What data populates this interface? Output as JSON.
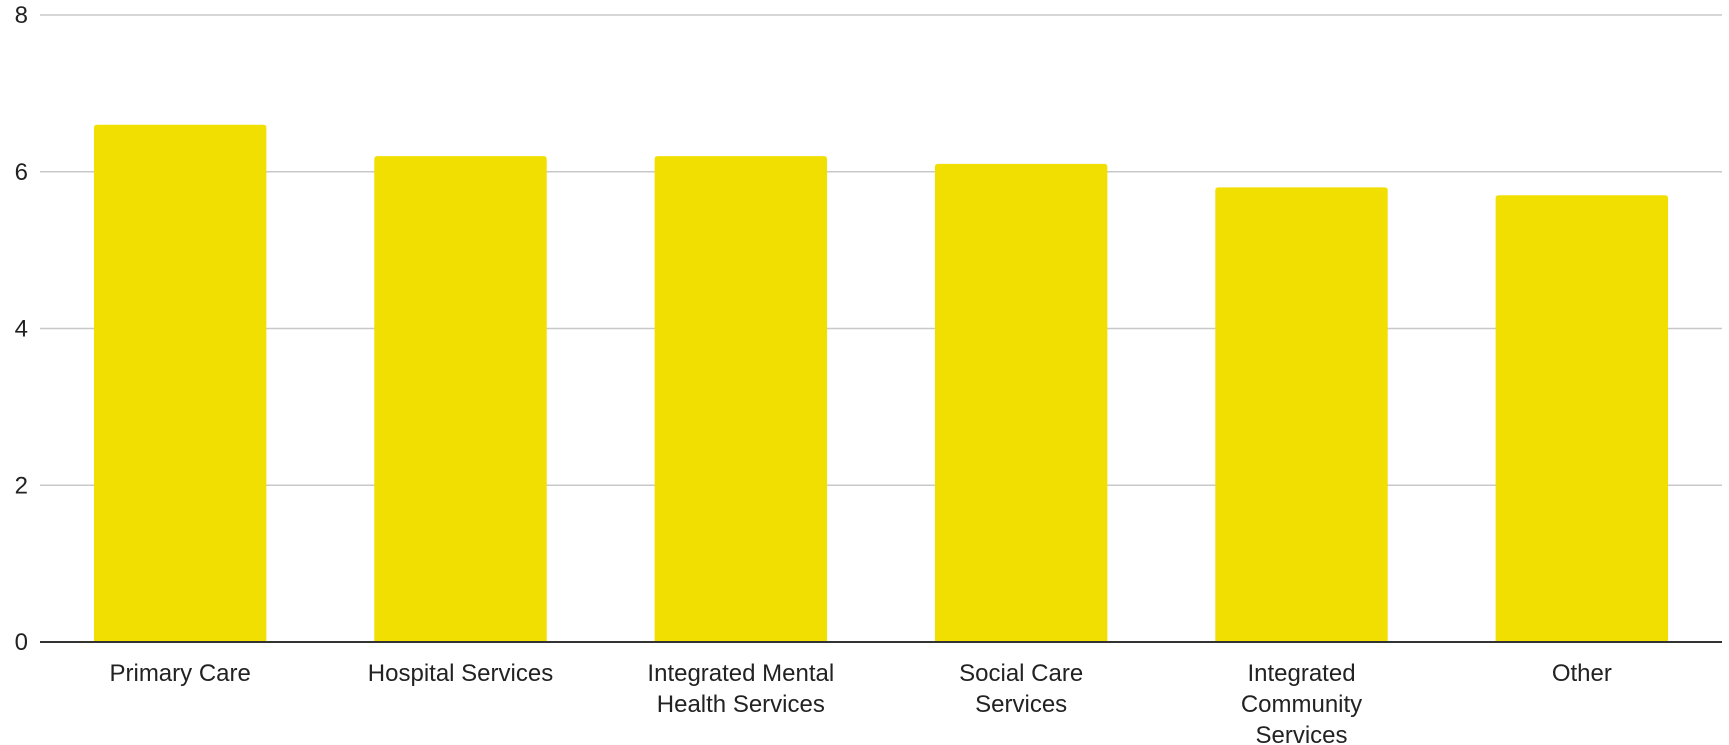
{
  "chart_data": {
    "type": "bar",
    "title": "",
    "xlabel": "",
    "ylabel": "",
    "categories": [
      [
        "Primary Care"
      ],
      [
        "Hospital Services"
      ],
      [
        "Integrated Mental",
        "Health Services"
      ],
      [
        "Social Care",
        "Services"
      ],
      [
        "Integrated",
        "Community",
        "Services"
      ],
      [
        "Other"
      ]
    ],
    "values": [
      6.6,
      6.2,
      6.2,
      6.1,
      5.8,
      5.7
    ],
    "ylim": [
      0,
      8
    ],
    "yticks": [
      0,
      2,
      4,
      6,
      8
    ],
    "grid": true,
    "legend": "none",
    "colors": {
      "bar": "#F0DF00",
      "grid": "#C8C8C8",
      "axis": "#333333",
      "text": "#222222"
    }
  }
}
